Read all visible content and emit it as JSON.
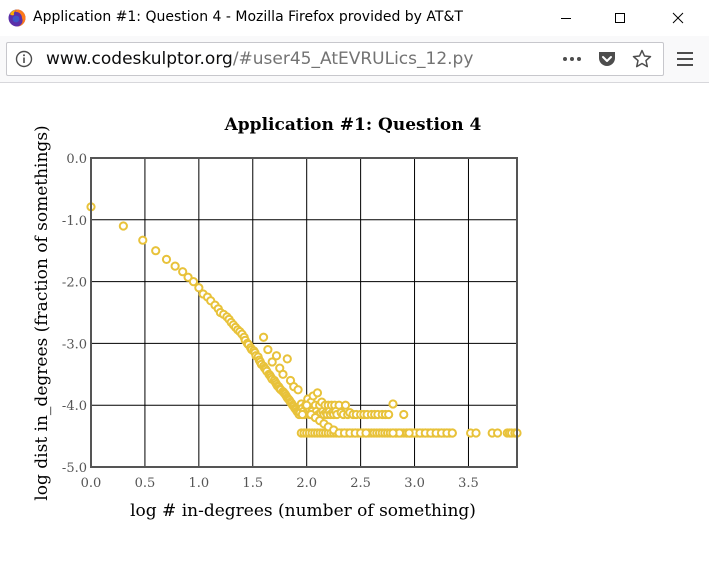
{
  "window": {
    "title": "Application #1: Question 4 - Mozilla Firefox provided by AT&T",
    "minimize_icon": "minimize-icon",
    "maximize_icon": "maximize-icon",
    "close_icon": "close-icon"
  },
  "navbar": {
    "url_host": "www.codeskulptor.org",
    "url_path": "/#user45_AtEVRULics_12.py",
    "icons": [
      "info-icon",
      "page-actions-icon",
      "pocket-icon",
      "bookmark-star-icon",
      "hamburger-menu-icon"
    ]
  },
  "colors": {
    "point_stroke": "#e8c23a",
    "grid": "#000000",
    "frame": "#555555"
  },
  "chart_data": {
    "type": "scatter",
    "title": "Application #1: Question 4",
    "xlabel": "log # in-degrees (number of something)",
    "ylabel": "log dist in_degrees (fraction of somethings)",
    "xlim": [
      0.0,
      3.95
    ],
    "ylim": [
      -5.0,
      0.0
    ],
    "xticks": [
      0.0,
      0.5,
      1.0,
      1.5,
      2.0,
      2.5,
      3.0,
      3.5
    ],
    "xtick_labels": [
      "0.0",
      "0.5",
      "1.0",
      "1.5",
      "2.0",
      "2.5",
      "3.0",
      "3.5"
    ],
    "yticks": [
      0.0,
      -1.0,
      -2.0,
      -3.0,
      -4.0,
      -5.0
    ],
    "ytick_labels": [
      "0.0",
      "-1.0",
      "-2.0",
      "-3.0",
      "-4.0",
      "-5.0"
    ],
    "grid": true,
    "legend": "none",
    "x": [
      0.0,
      0.3,
      0.48,
      0.6,
      0.7,
      0.78,
      0.85,
      0.9,
      0.95,
      1.0,
      1.04,
      1.08,
      1.11,
      1.15,
      1.18,
      1.2,
      1.23,
      1.26,
      1.28,
      1.3,
      1.32,
      1.34,
      1.36,
      1.38,
      1.4,
      1.42,
      1.43,
      1.45,
      1.46,
      1.48,
      1.49,
      1.51,
      1.52,
      1.53,
      1.55,
      1.56,
      1.57,
      1.58,
      1.6,
      1.61,
      1.62,
      1.63,
      1.65,
      1.66,
      1.67,
      1.68,
      1.7,
      1.71,
      1.72,
      1.73,
      1.74,
      1.75,
      1.76,
      1.78,
      1.79,
      1.8,
      1.81,
      1.82,
      1.83,
      1.84,
      1.85,
      1.86,
      1.87,
      1.88,
      1.89,
      1.9,
      1.91,
      1.92,
      1.93,
      1.94,
      1.95,
      1.96,
      1.97,
      1.98,
      1.99,
      2.0,
      2.01,
      2.02,
      2.03,
      2.04,
      2.05,
      2.06,
      2.07,
      2.08,
      2.09,
      2.1,
      2.11,
      2.12,
      2.13,
      2.14,
      2.15,
      2.16,
      2.17,
      2.18,
      2.19,
      2.2,
      2.21,
      2.22,
      2.23,
      2.24,
      2.25,
      2.26,
      2.27,
      2.28,
      2.3,
      2.32,
      2.34,
      2.36,
      2.38,
      2.4,
      2.43,
      2.46,
      2.5,
      2.53,
      2.56,
      2.6,
      2.63,
      2.66,
      2.7,
      2.73,
      2.76,
      2.8,
      2.83,
      2.86,
      2.9,
      2.93,
      2.96,
      3.0,
      3.05,
      3.1,
      3.15,
      3.2,
      3.25,
      3.3,
      3.35,
      3.52,
      3.57,
      3.72,
      3.77,
      3.86,
      3.88,
      3.9,
      3.93,
      3.95,
      1.6,
      1.64,
      1.68,
      1.72,
      1.75,
      1.78,
      1.82,
      1.85,
      1.88,
      1.92,
      1.96,
      2.0,
      2.04,
      2.08,
      2.12,
      2.16,
      2.2,
      2.25,
      2.3,
      2.35,
      2.4,
      2.45,
      2.5,
      2.55,
      2.8,
      2.95
    ],
    "y": [
      -0.79,
      -1.1,
      -1.33,
      -1.5,
      -1.64,
      -1.75,
      -1.84,
      -1.93,
      -2.0,
      -2.1,
      -2.2,
      -2.25,
      -2.31,
      -2.38,
      -2.44,
      -2.5,
      -2.53,
      -2.57,
      -2.61,
      -2.66,
      -2.7,
      -2.74,
      -2.78,
      -2.81,
      -2.85,
      -2.9,
      -2.95,
      -3.0,
      -3.02,
      -3.07,
      -3.1,
      -3.12,
      -3.15,
      -3.2,
      -3.22,
      -3.27,
      -3.3,
      -3.34,
      -3.37,
      -3.4,
      -3.42,
      -3.45,
      -3.5,
      -3.52,
      -3.55,
      -3.58,
      -3.6,
      -3.63,
      -3.66,
      -3.69,
      -3.7,
      -3.73,
      -3.75,
      -3.78,
      -3.8,
      -3.82,
      -3.85,
      -3.88,
      -3.9,
      -3.92,
      -3.95,
      -3.97,
      -4.0,
      -4.02,
      -4.05,
      -4.07,
      -4.1,
      -4.12,
      -4.15,
      -4.12,
      -3.98,
      -4.05,
      -4.1,
      -4.15,
      -4.0,
      -4.12,
      -3.9,
      -4.05,
      -4.15,
      -3.95,
      -4.1,
      -3.85,
      -4.15,
      -4.0,
      -4.1,
      -3.8,
      -4.15,
      -4.0,
      -4.12,
      -3.95,
      -4.1,
      -4.15,
      -4.0,
      -4.12,
      -4.15,
      -4.0,
      -4.1,
      -4.15,
      -4.0,
      -4.12,
      -4.15,
      -4.0,
      -4.1,
      -4.15,
      -4.0,
      -4.12,
      -4.15,
      -4.0,
      -4.15,
      -4.12,
      -4.15,
      -4.15,
      -4.15,
      -4.15,
      -4.15,
      -4.15,
      -4.15,
      -4.15,
      -4.15,
      -4.15,
      -4.15,
      -3.98,
      -4.45,
      -4.45,
      -4.15,
      -4.45,
      -4.45,
      -4.45,
      -4.45,
      -4.45,
      -4.45,
      -4.45,
      -4.45,
      -4.45,
      -4.45,
      -4.45,
      -4.45,
      -4.45,
      -4.45,
      -4.45,
      -4.45,
      -4.45,
      -4.45,
      -4.45,
      -2.9,
      -3.1,
      -3.3,
      -3.2,
      -3.4,
      -3.5,
      -3.25,
      -3.6,
      -3.7,
      -3.75,
      -4.15,
      -4.0,
      -4.15,
      -4.2,
      -4.25,
      -4.3,
      -4.35,
      -4.4,
      -4.45,
      -4.45,
      -4.45,
      -4.45,
      -4.45,
      -4.45,
      -4.45,
      -4.45
    ],
    "band_y": -4.45,
    "band_x_start": 1.95,
    "band_x_end": 3.37
  }
}
